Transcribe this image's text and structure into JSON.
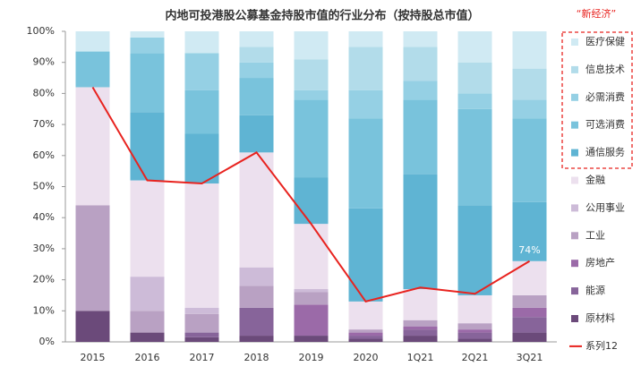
{
  "chart_data": {
    "type": "bar",
    "stacked": true,
    "title": "内地可投港股公募基金持股市值的行业分布（按持股总市值）",
    "legend_group_label": "“新经济”",
    "annotation": "74%",
    "categories": [
      "2015",
      "2016",
      "2017",
      "2018",
      "2019",
      "2020",
      "1Q21",
      "2Q21",
      "3Q21"
    ],
    "ylim": [
      0,
      100
    ],
    "yticks": [
      {
        "value": 0,
        "label": "0%"
      },
      {
        "value": 10,
        "label": "10%"
      },
      {
        "value": 20,
        "label": "20%"
      },
      {
        "value": 30,
        "label": "30%"
      },
      {
        "value": 40,
        "label": "40%"
      },
      {
        "value": 50,
        "label": "50%"
      },
      {
        "value": 60,
        "label": "60%"
      },
      {
        "value": 70,
        "label": "70%"
      },
      {
        "value": 80,
        "label": "80%"
      },
      {
        "value": 90,
        "label": "90%"
      },
      {
        "value": 100,
        "label": "100%"
      }
    ],
    "grid": false,
    "legend_position": "right",
    "series": [
      {
        "name": "原材料",
        "color": "#6b4a7a",
        "values": [
          10,
          3,
          1.5,
          2,
          2,
          1,
          2,
          1,
          3
        ]
      },
      {
        "name": "能源",
        "color": "#87649a",
        "values": [
          0,
          0,
          1.5,
          9,
          0,
          1,
          2,
          2,
          5
        ]
      },
      {
        "name": "房地产",
        "color": "#9b6aa8",
        "values": [
          0,
          0,
          0,
          0,
          10,
          1,
          1,
          1,
          3
        ]
      },
      {
        "name": "工业",
        "color": "#b9a1c3",
        "values": [
          34,
          7,
          6,
          7,
          4,
          1,
          2,
          2,
          4
        ]
      },
      {
        "name": "公用事业",
        "color": "#cdbbd8",
        "values": [
          0,
          11,
          2,
          6,
          1,
          0,
          0,
          0,
          0
        ]
      },
      {
        "name": "金融",
        "color": "#ece0ee",
        "values": [
          38,
          31,
          40,
          37,
          21,
          9,
          10,
          9,
          11
        ]
      },
      {
        "name": "通信服务",
        "color": "#5fb4d3",
        "values": [
          0,
          22,
          16,
          12,
          15,
          30,
          37,
          29,
          19
        ]
      },
      {
        "name": "可选消费",
        "color": "#79c3dc",
        "values": [
          11.5,
          19,
          14,
          12,
          25,
          29,
          24,
          31,
          27
        ]
      },
      {
        "name": "必需消费",
        "color": "#95d0e4",
        "values": [
          0,
          5,
          12,
          5,
          3,
          9,
          6,
          5,
          6
        ]
      },
      {
        "name": "信息技术",
        "color": "#b2dcea",
        "values": [
          0,
          0,
          0,
          5,
          10,
          14,
          11,
          10,
          10
        ]
      },
      {
        "name": "医疗保健",
        "color": "#d0eaf3",
        "values": [
          6.5,
          2,
          7,
          5,
          9,
          5,
          5,
          10,
          12
        ]
      },
      {
        "name": "系列12",
        "color": "#e8231f",
        "type": "line",
        "values": [
          82,
          52,
          51,
          61,
          38,
          13,
          17.5,
          15.5,
          26
        ]
      }
    ]
  }
}
